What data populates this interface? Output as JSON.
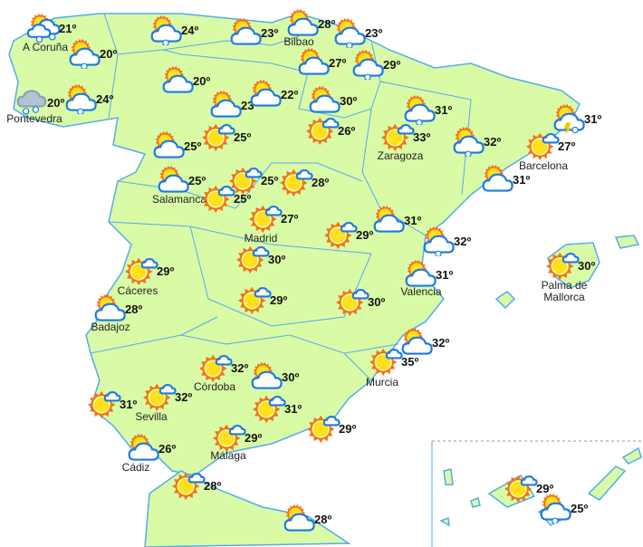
{
  "colors": {
    "land": "#d9fba6",
    "border": "#55aaf0",
    "sun": "#ffe01a",
    "sun_ray": "#f2711c",
    "cloud_outline": "#1a7ae8",
    "rain_cloud": "#b0c4d4"
  },
  "stations": [
    {
      "temp": "21º",
      "icon": "cloud-sun-heavy-rain",
      "city": "A Coruña"
    },
    {
      "temp": "20º",
      "icon": "cloud-sun-rain",
      "city": ""
    },
    {
      "temp": "20º",
      "icon": "rain-cloud",
      "city": "Pontevedra"
    },
    {
      "temp": "24º",
      "icon": "cloud-sun-rain",
      "city": ""
    },
    {
      "temp": "24º",
      "icon": "cloud-sun-rain",
      "city": ""
    },
    {
      "temp": "23º",
      "icon": "cloud-sun",
      "city": ""
    },
    {
      "temp": "28º",
      "icon": "cloud-sun",
      "city": "Bilbao"
    },
    {
      "temp": "23º",
      "icon": "cloud-sun-rain",
      "city": ""
    },
    {
      "temp": "27º",
      "icon": "cloud-sun",
      "city": ""
    },
    {
      "temp": "29º",
      "icon": "cloud-sun-rain",
      "city": ""
    },
    {
      "temp": "20º",
      "icon": "cloud-sun",
      "city": ""
    },
    {
      "temp": "23º",
      "icon": "cloud-sun",
      "city": ""
    },
    {
      "temp": "22º",
      "icon": "cloud-sun",
      "city": ""
    },
    {
      "temp": "30º",
      "icon": "cloud-sun",
      "city": ""
    },
    {
      "temp": "26º",
      "icon": "sun-cloud",
      "city": ""
    },
    {
      "temp": "31º",
      "icon": "cloud-sun-rain",
      "city": ""
    },
    {
      "temp": "33º",
      "icon": "sun-cloud",
      "city": "Zaragoza"
    },
    {
      "temp": "32º",
      "icon": "cloud-sun-rain",
      "city": ""
    },
    {
      "temp": "31º",
      "icon": "storm",
      "city": ""
    },
    {
      "temp": "27º",
      "icon": "sun-cloud",
      "city": "Barcelona"
    },
    {
      "temp": "31º",
      "icon": "cloud-sun",
      "city": ""
    },
    {
      "temp": "25º",
      "icon": "cloud-sun",
      "city": ""
    },
    {
      "temp": "25º",
      "icon": "sun-cloud",
      "city": ""
    },
    {
      "temp": "25º",
      "icon": "cloud-sun",
      "city": "Salamanca"
    },
    {
      "temp": "25º",
      "icon": "sun-cloud",
      "city": ""
    },
    {
      "temp": "25º",
      "icon": "sun-cloud",
      "city": ""
    },
    {
      "temp": "28º",
      "icon": "sun-cloud",
      "city": ""
    },
    {
      "temp": "27º",
      "icon": "sun-cloud",
      "city": "Madrid"
    },
    {
      "temp": "29º",
      "icon": "sun-cloud",
      "city": ""
    },
    {
      "temp": "31º",
      "icon": "cloud-sun",
      "city": ""
    },
    {
      "temp": "32º",
      "icon": "cloud-sun-rain",
      "city": ""
    },
    {
      "temp": "31º",
      "icon": "cloud-sun",
      "city": "Valencia"
    },
    {
      "temp": "30º",
      "icon": "sun-cloud",
      "city": "Palma de\nMallorca"
    },
    {
      "temp": "29º",
      "icon": "sun-cloud",
      "city": "Cáceres"
    },
    {
      "temp": "28º",
      "icon": "cloud-sun",
      "city": "Badajoz"
    },
    {
      "temp": "30º",
      "icon": "sun-cloud",
      "city": ""
    },
    {
      "temp": "29º",
      "icon": "sun-cloud",
      "city": ""
    },
    {
      "temp": "30º",
      "icon": "sun-cloud",
      "city": ""
    },
    {
      "temp": "32º",
      "icon": "cloud-sun",
      "city": ""
    },
    {
      "temp": "35º",
      "icon": "sun-cloud",
      "city": "Murcia"
    },
    {
      "temp": "32º",
      "icon": "sun-cloud",
      "city": "Córdoba"
    },
    {
      "temp": "30º",
      "icon": "cloud-sun",
      "city": ""
    },
    {
      "temp": "31º",
      "icon": "sun-cloud",
      "city": ""
    },
    {
      "temp": "32º",
      "icon": "sun-cloud",
      "city": "Sevilla"
    },
    {
      "temp": "31º",
      "icon": "sun-cloud",
      "city": ""
    },
    {
      "temp": "29º",
      "icon": "sun-cloud",
      "city": ""
    },
    {
      "temp": "29º",
      "icon": "sun-cloud",
      "city": "Málaga"
    },
    {
      "temp": "26º",
      "icon": "cloud-sun",
      "city": "Cádiz"
    },
    {
      "temp": "28º",
      "icon": "sun-cloud",
      "city": ""
    },
    {
      "temp": "28º",
      "icon": "cloud-sun",
      "city": ""
    },
    {
      "temp": "29º",
      "icon": "sun-cloud",
      "city": ""
    },
    {
      "temp": "25º",
      "icon": "cloud-sun-rain",
      "city": ""
    }
  ]
}
